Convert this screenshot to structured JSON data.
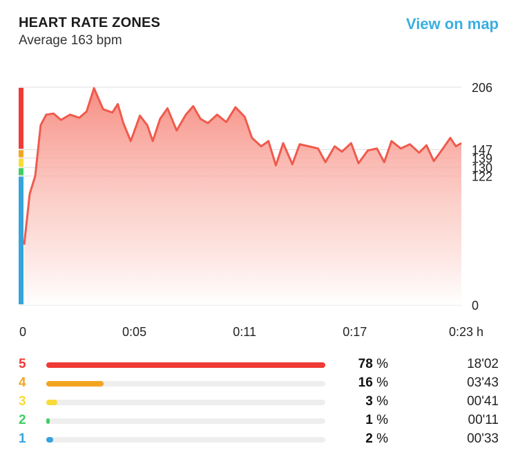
{
  "header": {
    "title": "HEART RATE ZONES",
    "subtitle": "Average 163 bpm",
    "map_link": "View on map"
  },
  "colors": {
    "zone5": "#ef3b36",
    "zone4": "#f3a522",
    "zone3": "#f7dc38",
    "zone2": "#3fce63",
    "zone1": "#35a4dc",
    "line": "#ef5a4c",
    "link": "#3aaee0"
  },
  "chart_data": {
    "type": "area",
    "title": "",
    "xlabel": "",
    "ylabel": "",
    "ylim": [
      0,
      206
    ],
    "xlim": [
      0,
      23.8
    ],
    "y_ticks": [
      {
        "value": 206,
        "label": "206"
      },
      {
        "value": 147,
        "label": "147"
      },
      {
        "value": 139,
        "label": "139"
      },
      {
        "value": 130,
        "label": "130"
      },
      {
        "value": 122,
        "label": "122"
      },
      {
        "value": 0,
        "label": "0"
      }
    ],
    "x_ticks": [
      {
        "value": 0,
        "label": "0"
      },
      {
        "value": 6,
        "label": "0:05"
      },
      {
        "value": 12,
        "label": "0:11"
      },
      {
        "value": 18,
        "label": "0:17"
      },
      {
        "value": 23.8,
        "label": "0:23 h"
      }
    ],
    "zone_bands": [
      {
        "zone": "5",
        "from": 147,
        "to": 206
      },
      {
        "zone": "4",
        "from": 139,
        "to": 147
      },
      {
        "zone": "3",
        "from": 130,
        "to": 139
      },
      {
        "zone": "2",
        "from": 122,
        "to": 130
      },
      {
        "zone": "1",
        "from": 0,
        "to": 122
      }
    ],
    "series": [
      {
        "x": [
          0.0,
          0.3,
          0.6,
          0.9,
          1.2,
          1.6,
          2.0,
          2.5,
          3.0,
          3.4,
          3.8,
          4.3,
          4.8,
          5.1,
          5.4,
          5.8,
          6.3,
          6.7,
          7.0,
          7.4,
          7.8,
          8.3,
          8.8,
          9.2,
          9.6,
          10.0,
          10.5,
          11.0,
          11.5,
          12.0,
          12.4,
          12.9,
          13.3,
          13.7,
          14.1,
          14.6,
          15.0,
          15.5,
          16.0,
          16.4,
          16.9,
          17.3,
          17.8,
          18.2,
          18.7,
          19.2,
          19.6,
          20.0,
          20.5,
          21.0,
          21.5,
          21.9,
          22.3,
          22.8,
          23.2,
          23.5,
          23.8
        ],
        "y": [
          57,
          105,
          122,
          170,
          180,
          181,
          175,
          180,
          177,
          183,
          205,
          185,
          182,
          190,
          172,
          155,
          179,
          170,
          155,
          176,
          186,
          165,
          180,
          188,
          176,
          172,
          180,
          173,
          187,
          178,
          158,
          150,
          155,
          132,
          153,
          133,
          152,
          150,
          148,
          135,
          150,
          145,
          153,
          134,
          146,
          148,
          135,
          155,
          148,
          152,
          144,
          151,
          136,
          148,
          158,
          150,
          153
        ]
      }
    ]
  },
  "zones": [
    {
      "number": "5",
      "percent": "78",
      "percent_value": 0.78,
      "time": "18'02",
      "color": "#ef3b36"
    },
    {
      "number": "4",
      "percent": "16",
      "percent_value": 0.16,
      "time": "03'43",
      "color": "#f3a522"
    },
    {
      "number": "3",
      "percent": "3",
      "percent_value": 0.03,
      "time": "00'41",
      "color": "#f7dc38"
    },
    {
      "number": "2",
      "percent": "1",
      "percent_value": 0.01,
      "time": "00'11",
      "color": "#3fce63"
    },
    {
      "number": "1",
      "percent": "2",
      "percent_value": 0.02,
      "time": "00'33",
      "color": "#35a4dc"
    }
  ],
  "percent_unit": "%"
}
